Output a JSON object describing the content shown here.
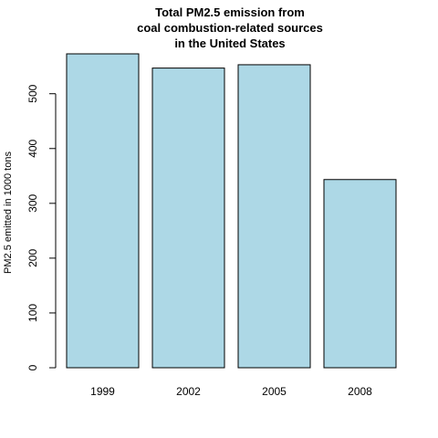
{
  "chart_data": {
    "type": "bar",
    "title_lines": [
      "Total PM2.5 emission from",
      "coal combustion-related sources",
      "in the United States"
    ],
    "xlabel": "",
    "ylabel": "PM2.5 emitted in 1000 tons",
    "categories": [
      "1999",
      "2002",
      "2005",
      "2008"
    ],
    "values": [
      572.8,
      546.8,
      552.9,
      343.4
    ],
    "ylim": [
      0,
      572.8
    ],
    "yticks": [
      0,
      100,
      200,
      300,
      400,
      500
    ],
    "bar_fill": "#add8e6",
    "bar_stroke": "#000000",
    "grid": false,
    "legend": "none"
  }
}
